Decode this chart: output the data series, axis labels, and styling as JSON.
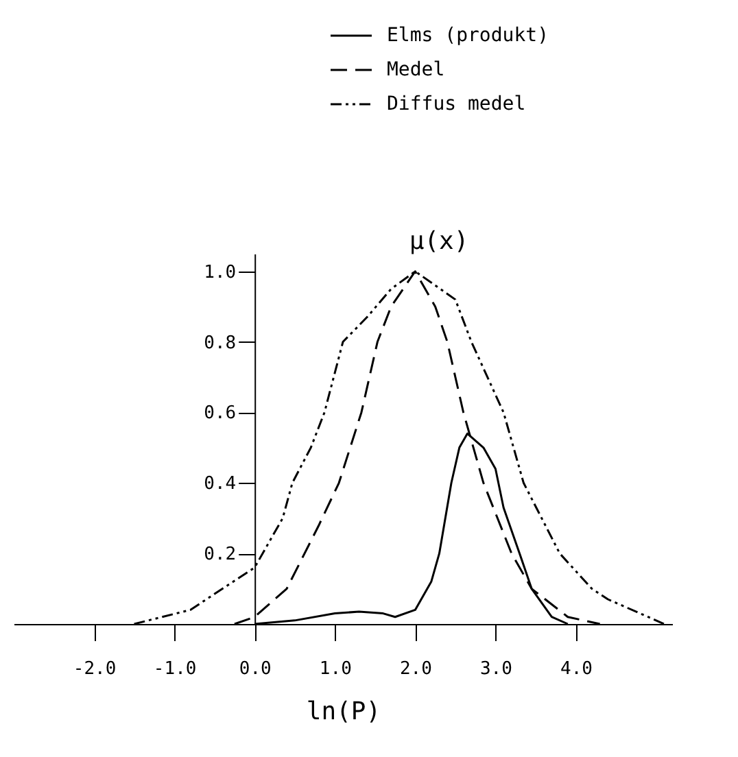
{
  "chart_data": {
    "type": "line",
    "xlabel": "ln(P)",
    "ylabel": "μ(x)",
    "xlim": [
      -3.0,
      5.2
    ],
    "xticks": [
      {
        "value": -2,
        "label": "-2.0"
      },
      {
        "value": -1,
        "label": "-1.0"
      },
      {
        "value": 0,
        "label": "0.0"
      },
      {
        "value": 1,
        "label": "1.0"
      },
      {
        "value": 2,
        "label": "2.0"
      },
      {
        "value": 3,
        "label": "3.0"
      },
      {
        "value": 4,
        "label": "4.0"
      }
    ],
    "ylim": [
      0,
      1.05
    ],
    "yticks": [
      0.2,
      0.4,
      0.6,
      0.8,
      {
        "value": 1,
        "label": "1.0"
      }
    ],
    "grid": false,
    "legend": "top right",
    "marker": "none",
    "series": [
      {
        "name": "Elms (produkt)",
        "color": "#000000",
        "line_style": "solid",
        "x": [
          0.0,
          0.5,
          1.0,
          1.3,
          1.6,
          1.75,
          2.0,
          2.2,
          2.3,
          2.45,
          2.55,
          2.65,
          2.85,
          3.0,
          3.1,
          3.3,
          3.45,
          3.7,
          3.9
        ],
        "values": [
          0,
          0.01,
          0.03,
          0.035,
          0.03,
          0.02,
          0.04,
          0.12,
          0.2,
          0.4,
          0.5,
          0.54,
          0.5,
          0.44,
          0.33,
          0.2,
          0.1,
          0.02,
          0
        ]
      },
      {
        "name": "Medel",
        "color": "#000000",
        "line_style": "dashed",
        "x": [
          -0.25,
          0.0,
          0.4,
          0.8,
          1.05,
          1.33,
          1.53,
          1.7,
          2.0,
          2.25,
          2.4,
          2.6,
          2.85,
          3.2,
          3.45,
          3.9,
          4.3
        ],
        "values": [
          0,
          0.02,
          0.1,
          0.28,
          0.4,
          0.6,
          0.8,
          0.9,
          1.0,
          0.9,
          0.8,
          0.6,
          0.4,
          0.2,
          0.1,
          0.02,
          0
        ]
      },
      {
        "name": "Diffus medel",
        "color": "#000000",
        "line_style": "dotted",
        "x": [
          -1.5,
          -0.8,
          0.0,
          0.35,
          0.47,
          0.7,
          0.87,
          1.1,
          1.4,
          1.7,
          2.0,
          2.5,
          2.7,
          3.1,
          3.35,
          3.8,
          4.2,
          4.4,
          4.9,
          5.1
        ],
        "values": [
          0,
          0.04,
          0.16,
          0.3,
          0.4,
          0.5,
          0.6,
          0.8,
          0.87,
          0.95,
          1.0,
          0.92,
          0.8,
          0.6,
          0.4,
          0.2,
          0.1,
          0.07,
          0.02,
          0
        ]
      }
    ]
  }
}
